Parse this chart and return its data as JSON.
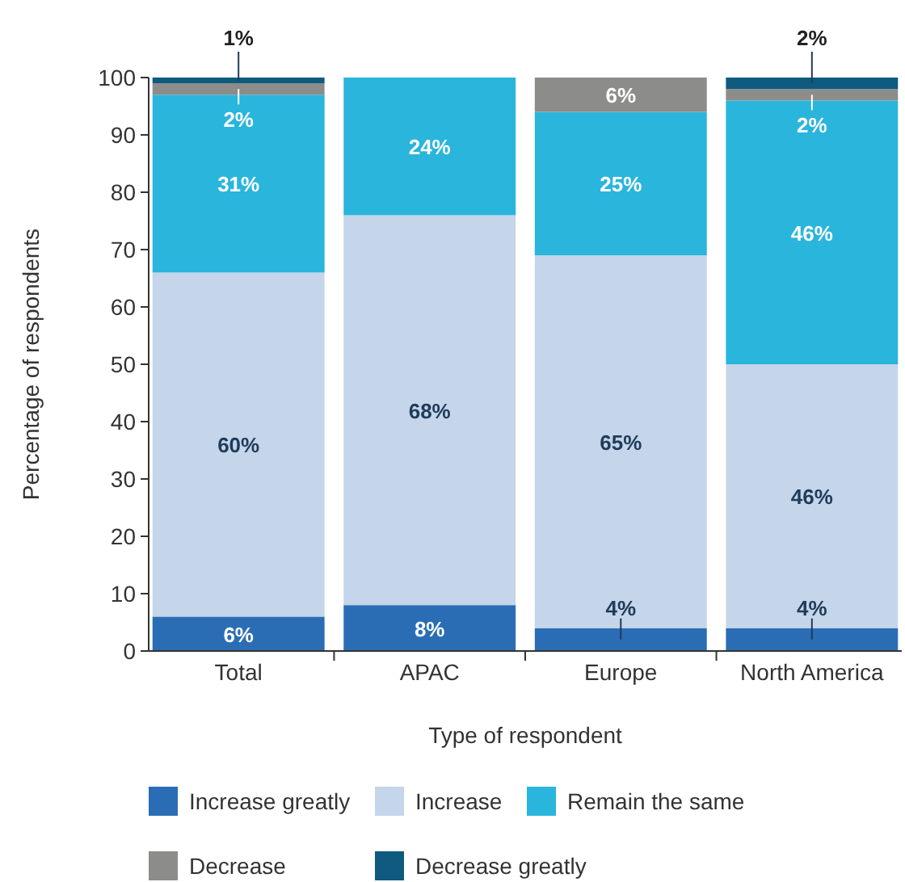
{
  "chart_data": {
    "type": "bar",
    "stacked": true,
    "xlabel": "Type of respondent",
    "ylabel": "Percentage of respondents",
    "categories": [
      "Total",
      "APAC",
      "Europe",
      "North America"
    ],
    "series": [
      {
        "name": "Increase greatly",
        "color": "#2a6db5",
        "values": [
          6,
          8,
          4,
          4
        ],
        "value_labels": [
          "6%",
          "8%",
          "4%",
          "4%"
        ]
      },
      {
        "name": "Increase",
        "color": "#c5d5ea",
        "values": [
          60,
          68,
          65,
          46
        ],
        "value_labels": [
          "60%",
          "68%",
          "65%",
          "46%"
        ]
      },
      {
        "name": "Remain the same",
        "color": "#29b5dc",
        "values": [
          31,
          24,
          25,
          46
        ],
        "value_labels": [
          "31%",
          "24%",
          "25%",
          "46%"
        ]
      },
      {
        "name": "Decrease",
        "color": "#8c8c8a",
        "values": [
          2,
          null,
          6,
          2
        ],
        "value_labels": [
          "2%",
          null,
          "6%",
          "2%"
        ]
      },
      {
        "name": "Decrease greatly",
        "color": "#0f5a7f",
        "values": [
          1,
          null,
          null,
          2
        ],
        "value_labels": [
          "1%",
          null,
          null,
          "2%"
        ]
      }
    ],
    "ylim": [
      0,
      100
    ],
    "yticks": [
      0,
      10,
      20,
      30,
      40,
      50,
      60,
      70,
      80,
      90,
      100
    ],
    "grid": false,
    "legend": "bottom"
  }
}
